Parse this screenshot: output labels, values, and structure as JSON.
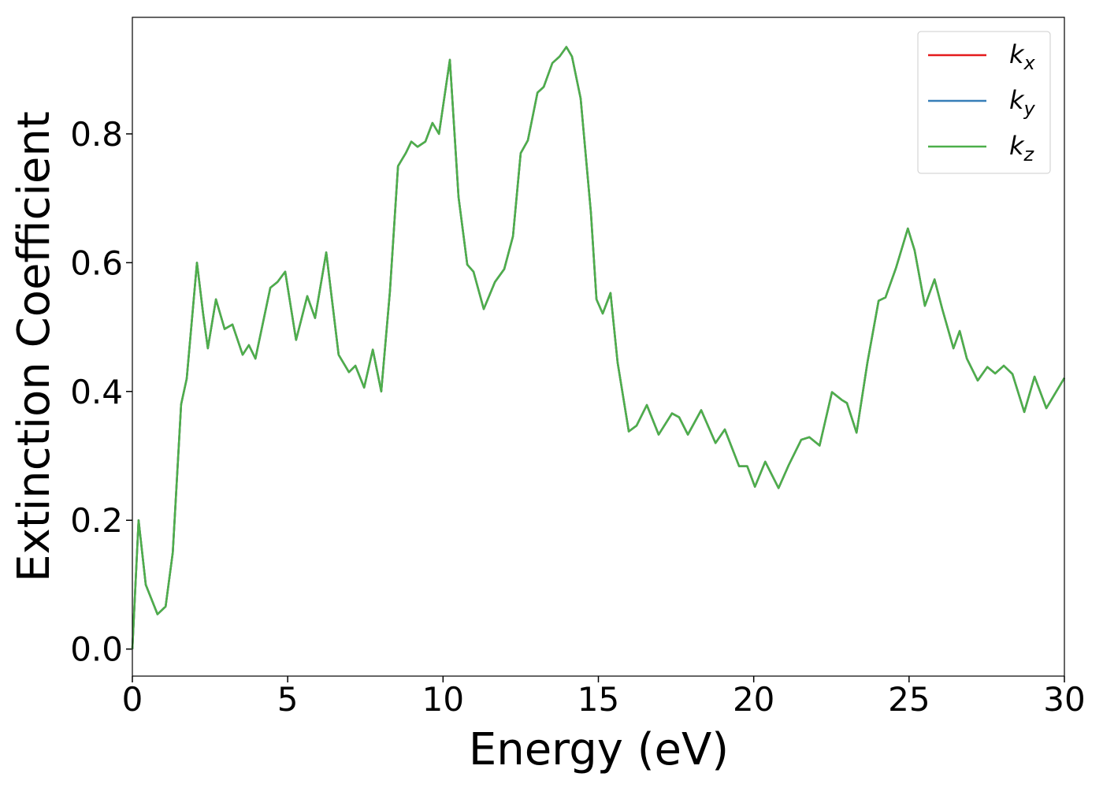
{
  "chart_data": {
    "type": "line",
    "xlabel": "Energy (eV)",
    "ylabel": "Extinction Coefficient",
    "xlim": [
      0,
      30
    ],
    "ylim": [
      -0.042,
      0.981
    ],
    "xticks": [
      0,
      5,
      10,
      15,
      20,
      25,
      30
    ],
    "yticks": [
      {
        "value": 0,
        "label": "0.0"
      },
      0.2,
      0.4,
      0.6,
      0.8
    ],
    "legend": "upper right",
    "x": [
      0,
      0.2,
      0.43,
      0.81,
      1.07,
      1.3,
      1.57,
      1.75,
      2.08,
      2.28,
      2.43,
      2.69,
      2.97,
      3.22,
      3.55,
      3.75,
      3.96,
      4.44,
      4.67,
      4.92,
      5.27,
      5.63,
      5.88,
      6.24,
      6.64,
      6.97,
      7.18,
      7.46,
      7.74,
      8.01,
      8.29,
      8.55,
      8.8,
      8.98,
      9.18,
      9.43,
      9.66,
      9.87,
      10.22,
      10.5,
      10.78,
      10.98,
      11.31,
      11.67,
      11.97,
      12.25,
      12.5,
      12.73,
      13.04,
      13.24,
      13.52,
      13.75,
      13.97,
      14.15,
      14.43,
      14.76,
      14.94,
      15.14,
      15.39,
      15.62,
      15.98,
      16.23,
      16.56,
      16.94,
      17.37,
      17.6,
      17.88,
      18.31,
      18.77,
      19.07,
      19.53,
      19.79,
      20.04,
      20.37,
      20.8,
      21.13,
      21.53,
      21.79,
      22.12,
      22.52,
      22.83,
      23.0,
      23.31,
      23.66,
      24.02,
      24.24,
      24.58,
      24.96,
      25.18,
      25.51,
      25.82,
      26.07,
      26.43,
      26.63,
      26.86,
      27.21,
      27.52,
      27.77,
      28.05,
      28.33,
      28.71,
      29.04,
      29.42,
      30.0
    ],
    "series": [
      {
        "name": "kx",
        "color": "#e41a1c",
        "values": [
          0.0,
          0.2,
          0.1,
          0.054,
          0.066,
          0.15,
          0.38,
          0.42,
          0.6,
          0.52,
          0.467,
          0.543,
          0.497,
          0.504,
          0.457,
          0.472,
          0.451,
          0.561,
          0.57,
          0.586,
          0.48,
          0.548,
          0.514,
          0.616,
          0.457,
          0.43,
          0.44,
          0.406,
          0.465,
          0.4,
          0.555,
          0.75,
          0.77,
          0.788,
          0.78,
          0.788,
          0.817,
          0.8,
          0.915,
          0.702,
          0.597,
          0.586,
          0.528,
          0.57,
          0.59,
          0.641,
          0.77,
          0.79,
          0.864,
          0.873,
          0.91,
          0.92,
          0.935,
          0.92,
          0.855,
          0.678,
          0.543,
          0.521,
          0.553,
          0.445,
          0.338,
          0.347,
          0.379,
          0.333,
          0.366,
          0.36,
          0.333,
          0.371,
          0.32,
          0.341,
          0.284,
          0.284,
          0.252,
          0.291,
          0.25,
          0.286,
          0.325,
          0.329,
          0.316,
          0.399,
          0.387,
          0.382,
          0.336,
          0.445,
          0.541,
          0.546,
          0.592,
          0.653,
          0.619,
          0.533,
          0.574,
          0.528,
          0.467,
          0.494,
          0.451,
          0.417,
          0.438,
          0.428,
          0.44,
          0.427,
          0.368,
          0.423,
          0.374,
          0.421
        ]
      },
      {
        "name": "ky",
        "color": "#377eb8",
        "values": [
          0.0,
          0.2,
          0.1,
          0.054,
          0.066,
          0.15,
          0.38,
          0.42,
          0.6,
          0.52,
          0.467,
          0.543,
          0.497,
          0.504,
          0.457,
          0.472,
          0.451,
          0.561,
          0.57,
          0.586,
          0.48,
          0.548,
          0.514,
          0.616,
          0.457,
          0.43,
          0.44,
          0.406,
          0.465,
          0.4,
          0.555,
          0.75,
          0.77,
          0.788,
          0.78,
          0.788,
          0.817,
          0.8,
          0.915,
          0.702,
          0.597,
          0.586,
          0.528,
          0.57,
          0.59,
          0.641,
          0.77,
          0.79,
          0.864,
          0.873,
          0.91,
          0.92,
          0.935,
          0.92,
          0.855,
          0.678,
          0.543,
          0.521,
          0.553,
          0.445,
          0.338,
          0.347,
          0.379,
          0.333,
          0.366,
          0.36,
          0.333,
          0.371,
          0.32,
          0.341,
          0.284,
          0.284,
          0.252,
          0.291,
          0.25,
          0.286,
          0.325,
          0.329,
          0.316,
          0.399,
          0.387,
          0.382,
          0.336,
          0.445,
          0.541,
          0.546,
          0.592,
          0.653,
          0.619,
          0.533,
          0.574,
          0.528,
          0.467,
          0.494,
          0.451,
          0.417,
          0.438,
          0.428,
          0.44,
          0.427,
          0.368,
          0.423,
          0.374,
          0.421
        ]
      },
      {
        "name": "kz",
        "color": "#4daf4a",
        "values": [
          0.0,
          0.2,
          0.1,
          0.054,
          0.066,
          0.15,
          0.38,
          0.42,
          0.6,
          0.52,
          0.467,
          0.543,
          0.497,
          0.504,
          0.457,
          0.472,
          0.451,
          0.561,
          0.57,
          0.586,
          0.48,
          0.548,
          0.514,
          0.616,
          0.457,
          0.43,
          0.44,
          0.406,
          0.465,
          0.4,
          0.555,
          0.75,
          0.77,
          0.788,
          0.78,
          0.788,
          0.817,
          0.8,
          0.915,
          0.702,
          0.597,
          0.586,
          0.528,
          0.57,
          0.59,
          0.641,
          0.77,
          0.79,
          0.864,
          0.873,
          0.91,
          0.92,
          0.935,
          0.92,
          0.855,
          0.678,
          0.543,
          0.521,
          0.553,
          0.445,
          0.338,
          0.347,
          0.379,
          0.333,
          0.366,
          0.36,
          0.333,
          0.371,
          0.32,
          0.341,
          0.284,
          0.284,
          0.252,
          0.291,
          0.25,
          0.286,
          0.325,
          0.329,
          0.316,
          0.399,
          0.387,
          0.382,
          0.336,
          0.445,
          0.541,
          0.546,
          0.592,
          0.653,
          0.619,
          0.533,
          0.574,
          0.528,
          0.467,
          0.494,
          0.451,
          0.417,
          0.438,
          0.428,
          0.44,
          0.427,
          0.368,
          0.423,
          0.374,
          0.421
        ]
      }
    ]
  }
}
